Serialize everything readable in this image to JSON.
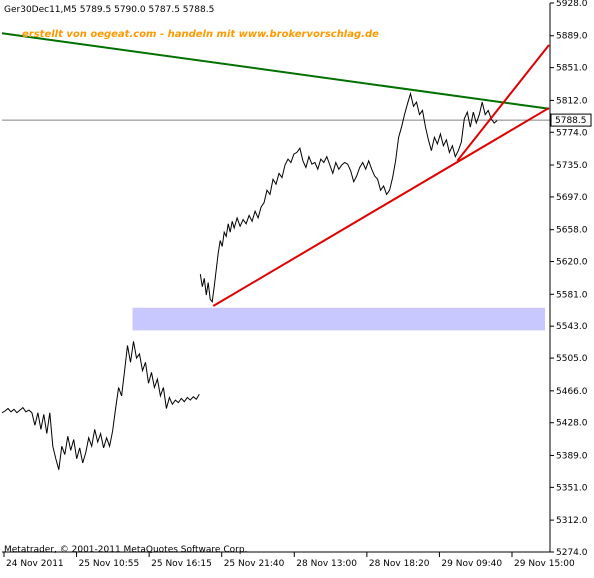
{
  "header": {
    "symbol_quote": "Ger30Dec11,M5  5789.5  5790.0  5787.5  5788.5",
    "watermark": "erstellt von oegeat.com - handeln mit www.brokervorschlag.de"
  },
  "footer": {
    "copyright": "Metatrader, © 2001-2011 MetaQuotes Software Corp."
  },
  "colors": {
    "background": "#ffffff",
    "price_line": "#000000",
    "resistance_line": "#007000",
    "support_lines": "#e00000",
    "zone_fill": "#c8c8ff",
    "current_price_label_bg": "#ffffff",
    "watermark_text": "#ff9900"
  },
  "chart_data": {
    "type": "line",
    "timeframe": "M5",
    "symbol": "Ger30Dec11",
    "current_price": 5788.5,
    "current_price_label": "5788.5",
    "ylim": [
      5274,
      5928
    ],
    "y_ticks": [
      "5928.0",
      "5889.0",
      "5851.0",
      "5812.0",
      "5774.0",
      "5735.0",
      "5697.0",
      "5658.0",
      "5620.0",
      "5581.0",
      "5543.0",
      "5505.0",
      "5466.0",
      "5428.0",
      "5389.0",
      "5351.0",
      "5312.0",
      "5274.0"
    ],
    "x_ticks": [
      "24 Nov 2011",
      "25 Nov 10:55",
      "25 Nov 16:15",
      "25 Nov 21:40",
      "28 Nov 13:00",
      "28 Nov 18:20",
      "29 Nov 09:40",
      "29 Nov 15:00"
    ],
    "segments": [
      [
        [
          0,
          5440
        ],
        [
          3,
          5442
        ],
        [
          6,
          5445
        ],
        [
          9,
          5441
        ],
        [
          12,
          5444
        ],
        [
          15,
          5440
        ],
        [
          18,
          5443
        ],
        [
          21,
          5446
        ],
        [
          24,
          5441
        ],
        [
          27,
          5443
        ],
        [
          30,
          5440
        ],
        [
          33,
          5425
        ],
        [
          36,
          5440
        ],
        [
          39,
          5420
        ],
        [
          42,
          5438
        ],
        [
          45,
          5415
        ],
        [
          48,
          5440
        ],
        [
          51,
          5400
        ],
        [
          54,
          5385
        ],
        [
          57,
          5372
        ],
        [
          60,
          5400
        ],
        [
          63,
          5390
        ],
        [
          66,
          5412
        ],
        [
          69,
          5395
        ],
        [
          72,
          5408
        ],
        [
          75,
          5385
        ],
        [
          78,
          5398
        ],
        [
          81,
          5380
        ],
        [
          84,
          5392
        ],
        [
          87,
          5410
        ],
        [
          90,
          5400
        ],
        [
          93,
          5420
        ],
        [
          96,
          5405
        ],
        [
          99,
          5415
        ],
        [
          102,
          5398
        ],
        [
          105,
          5410
        ],
        [
          108,
          5400
        ],
        [
          111,
          5418
        ],
        [
          114,
          5445
        ],
        [
          117,
          5470
        ],
        [
          120,
          5460
        ],
        [
          123,
          5490
        ],
        [
          126,
          5520
        ],
        [
          129,
          5500
        ],
        [
          132,
          5525
        ],
        [
          135,
          5505
        ],
        [
          138,
          5510
        ],
        [
          141,
          5490
        ],
        [
          144,
          5500
        ],
        [
          147,
          5475
        ],
        [
          150,
          5488
        ],
        [
          153,
          5470
        ],
        [
          156,
          5480
        ],
        [
          159,
          5460
        ],
        [
          162,
          5470
        ],
        [
          165,
          5445
        ],
        [
          168,
          5458
        ],
        [
          171,
          5450
        ],
        [
          174,
          5455
        ],
        [
          177,
          5452
        ],
        [
          180,
          5457
        ],
        [
          183,
          5453
        ],
        [
          186,
          5458
        ],
        [
          189,
          5455
        ],
        [
          192,
          5459
        ],
        [
          195,
          5456
        ],
        [
          198,
          5462
        ]
      ],
      [
        [
          199,
          5605
        ],
        [
          201,
          5590
        ],
        [
          203,
          5600
        ],
        [
          205,
          5580
        ],
        [
          207,
          5595
        ],
        [
          209,
          5575
        ],
        [
          211,
          5572
        ],
        [
          213,
          5590
        ],
        [
          215,
          5610
        ],
        [
          217,
          5630
        ],
        [
          219,
          5645
        ],
        [
          221,
          5638
        ],
        [
          223,
          5655
        ],
        [
          225,
          5650
        ],
        [
          227,
          5665
        ],
        [
          229,
          5655
        ],
        [
          231,
          5668
        ],
        [
          233,
          5660
        ],
        [
          236,
          5672
        ],
        [
          239,
          5662
        ],
        [
          242,
          5670
        ],
        [
          245,
          5665
        ],
        [
          248,
          5675
        ],
        [
          251,
          5668
        ],
        [
          254,
          5680
        ],
        [
          257,
          5672
        ],
        [
          260,
          5685
        ],
        [
          263,
          5690
        ],
        [
          266,
          5705
        ],
        [
          269,
          5700
        ],
        [
          272,
          5718
        ],
        [
          275,
          5712
        ],
        [
          278,
          5725
        ],
        [
          281,
          5720
        ],
        [
          284,
          5735
        ],
        [
          287,
          5742
        ],
        [
          290,
          5738
        ],
        [
          293,
          5748
        ],
        [
          296,
          5750
        ],
        [
          299,
          5755
        ],
        [
          302,
          5740
        ],
        [
          305,
          5732
        ],
        [
          308,
          5745
        ],
        [
          311,
          5736
        ],
        [
          314,
          5738
        ],
        [
          317,
          5730
        ],
        [
          320,
          5742
        ],
        [
          323,
          5738
        ],
        [
          326,
          5745
        ],
        [
          329,
          5735
        ],
        [
          332,
          5725
        ],
        [
          335,
          5738
        ],
        [
          338,
          5730
        ],
        [
          341,
          5735
        ],
        [
          344,
          5738
        ],
        [
          347,
          5736
        ],
        [
          350,
          5728
        ],
        [
          353,
          5715
        ],
        [
          356,
          5722
        ],
        [
          359,
          5732
        ],
        [
          362,
          5738
        ],
        [
          365,
          5730
        ],
        [
          368,
          5740
        ],
        [
          371,
          5730
        ],
        [
          374,
          5722
        ],
        [
          377,
          5718
        ],
        [
          380,
          5705
        ],
        [
          383,
          5710
        ],
        [
          386,
          5700
        ],
        [
          389,
          5705
        ],
        [
          392,
          5720
        ],
        [
          395,
          5740
        ],
        [
          398,
          5768
        ],
        [
          401,
          5780
        ],
        [
          404,
          5795
        ],
        [
          407,
          5808
        ],
        [
          410,
          5820
        ],
        [
          413,
          5805
        ],
        [
          416,
          5810
        ],
        [
          419,
          5795
        ],
        [
          422,
          5800
        ],
        [
          425,
          5780
        ],
        [
          428,
          5765
        ],
        [
          431,
          5752
        ],
        [
          434,
          5768
        ],
        [
          437,
          5760
        ],
        [
          440,
          5772
        ],
        [
          443,
          5758
        ],
        [
          446,
          5765
        ],
        [
          449,
          5750
        ],
        [
          452,
          5758
        ],
        [
          455,
          5745
        ],
        [
          458,
          5752
        ],
        [
          461,
          5762
        ],
        [
          464,
          5790
        ],
        [
          467,
          5798
        ],
        [
          470,
          5780
        ],
        [
          473,
          5798
        ],
        [
          476,
          5785
        ],
        [
          479,
          5795
        ],
        [
          482,
          5810
        ],
        [
          485,
          5795
        ],
        [
          488,
          5800
        ],
        [
          491,
          5790
        ],
        [
          494,
          5785
        ],
        [
          497,
          5788
        ]
      ]
    ],
    "trendlines": [
      {
        "role": "resistance",
        "color": "green",
        "start": [
          0,
          5892
        ],
        "end": [
          549,
          5802
        ]
      },
      {
        "role": "support",
        "color": "red",
        "start": [
          212,
          5567
        ],
        "end": [
          549,
          5803
        ]
      },
      {
        "role": "support",
        "color": "red",
        "start": [
          457,
          5740
        ],
        "end": [
          549,
          5878
        ]
      }
    ],
    "zone": {
      "x_start": 131,
      "x_end": 545,
      "y_low": 5538,
      "y_high": 5565
    }
  }
}
